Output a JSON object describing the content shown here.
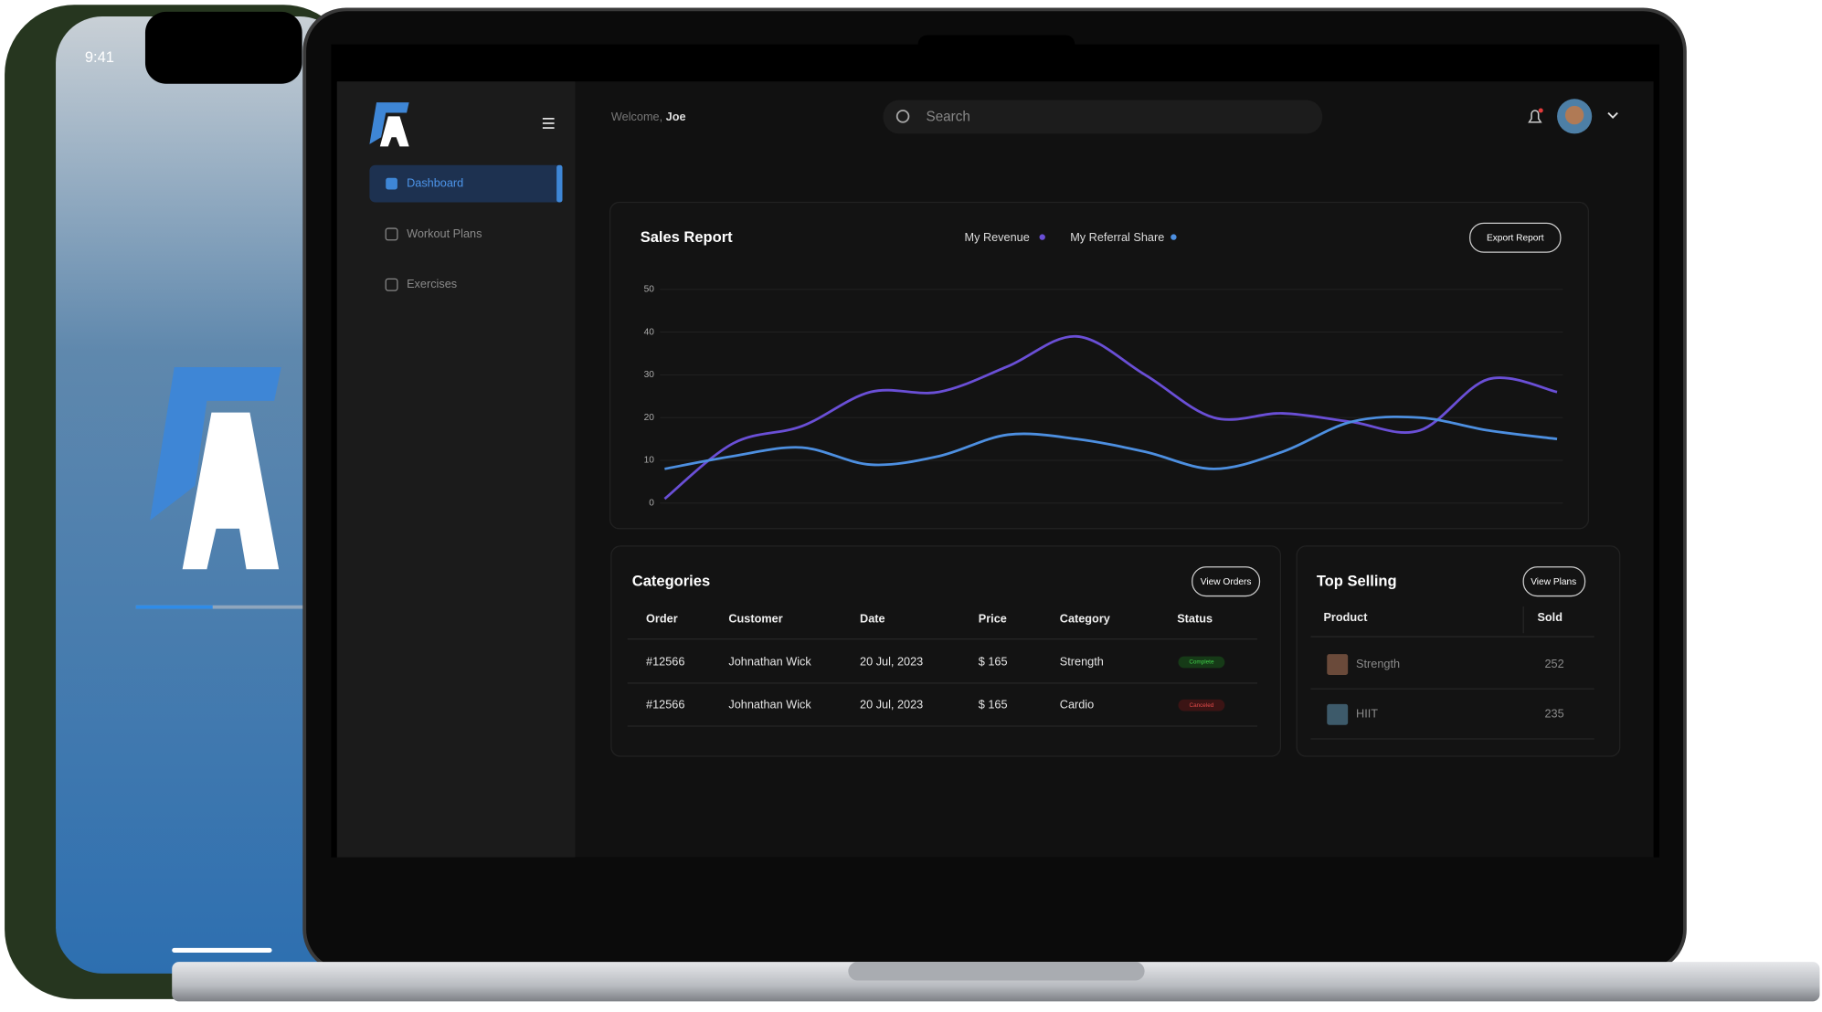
{
  "phone": {
    "time": "9:41"
  },
  "header": {
    "welcome": "Welcome,",
    "user": "Joe",
    "search_placeholder": "Search"
  },
  "sidebar": {
    "items": [
      "Dashboard",
      "Workout Plans",
      "Exercises"
    ]
  },
  "chart_data": {
    "type": "line",
    "title": "Sales Report",
    "button": "Export Report",
    "series": [
      {
        "name": "My Revenue",
        "color": "#6a4fd6",
        "values": [
          1,
          14,
          18,
          26,
          26,
          32,
          39,
          30,
          20,
          21,
          19,
          17,
          29,
          26
        ]
      },
      {
        "name": "My Referral Share",
        "color": "#4d8fe0",
        "values": [
          8,
          11,
          13,
          9,
          11,
          16,
          15,
          12,
          8,
          12,
          19,
          20,
          17,
          15
        ]
      }
    ],
    "ylim": [
      0,
      50
    ],
    "yticks": [
      0,
      10,
      20,
      30,
      40,
      50
    ],
    "grid": true
  },
  "orders": {
    "title": "Categories",
    "button": "View Orders",
    "columns": [
      "Order",
      "Customer",
      "Date",
      "Price",
      "Category",
      "Status"
    ],
    "rows": [
      [
        "#12566",
        "Johnathan Wick",
        "20 Jul, 2023",
        "$ 165",
        "Strength",
        "Complete"
      ],
      [
        "#12566",
        "Johnathan Wick",
        "20 Jul, 2023",
        "$ 165",
        "Cardio",
        "Canceled"
      ]
    ]
  },
  "top_selling": {
    "title": "Top Selling",
    "button": "View Plans",
    "columns": [
      "Product",
      "Sold"
    ],
    "rows": [
      [
        "Strength",
        252
      ],
      [
        "HIIT",
        235
      ]
    ]
  }
}
